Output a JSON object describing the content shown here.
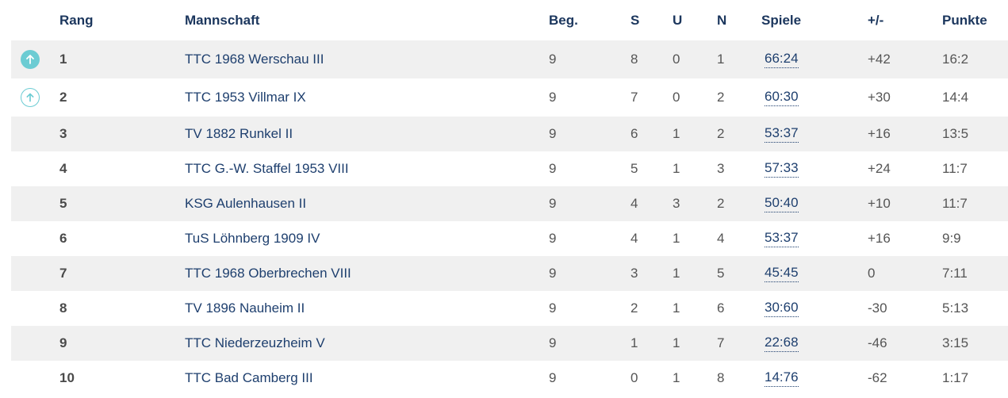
{
  "header": {
    "rank": "Rang",
    "team": "Mannschaft",
    "played": "Beg.",
    "won": "S",
    "draw": "U",
    "lost": "N",
    "games": "Spiele",
    "diff": "+/-",
    "points": "Punkte"
  },
  "accent_color": "#6cccd3",
  "rows": [
    {
      "rank": "1",
      "team": "TTC 1968 Werschau III",
      "played": "9",
      "won": "8",
      "draw": "0",
      "lost": "1",
      "games": "66:24",
      "diff": "+42",
      "points": "16:2",
      "status_icon": "promotion-arrow-up-filled"
    },
    {
      "rank": "2",
      "team": "TTC 1953 Villmar IX",
      "played": "9",
      "won": "7",
      "draw": "0",
      "lost": "2",
      "games": "60:30",
      "diff": "+30",
      "points": "14:4",
      "status_icon": "promotion-arrow-up-outline"
    },
    {
      "rank": "3",
      "team": "TV 1882 Runkel II",
      "played": "9",
      "won": "6",
      "draw": "1",
      "lost": "2",
      "games": "53:37",
      "diff": "+16",
      "points": "13:5"
    },
    {
      "rank": "4",
      "team": "TTC G.-W. Staffel 1953 VIII",
      "played": "9",
      "won": "5",
      "draw": "1",
      "lost": "3",
      "games": "57:33",
      "diff": "+24",
      "points": "11:7"
    },
    {
      "rank": "5",
      "team": "KSG Aulenhausen II",
      "played": "9",
      "won": "4",
      "draw": "3",
      "lost": "2",
      "games": "50:40",
      "diff": "+10",
      "points": "11:7"
    },
    {
      "rank": "6",
      "team": "TuS Löhnberg 1909 IV",
      "played": "9",
      "won": "4",
      "draw": "1",
      "lost": "4",
      "games": "53:37",
      "diff": "+16",
      "points": "9:9"
    },
    {
      "rank": "7",
      "team": "TTC 1968 Oberbrechen VIII",
      "played": "9",
      "won": "3",
      "draw": "1",
      "lost": "5",
      "games": "45:45",
      "diff": "0",
      "points": "7:11"
    },
    {
      "rank": "8",
      "team": "TV 1896 Nauheim II",
      "played": "9",
      "won": "2",
      "draw": "1",
      "lost": "6",
      "games": "30:60",
      "diff": "-30",
      "points": "5:13"
    },
    {
      "rank": "9",
      "team": "TTC Niederzeuzheim V",
      "played": "9",
      "won": "1",
      "draw": "1",
      "lost": "7",
      "games": "22:68",
      "diff": "-46",
      "points": "3:15"
    },
    {
      "rank": "10",
      "team": "TTC Bad Camberg III",
      "played": "9",
      "won": "0",
      "draw": "1",
      "lost": "8",
      "games": "14:76",
      "diff": "-62",
      "points": "1:17"
    }
  ]
}
